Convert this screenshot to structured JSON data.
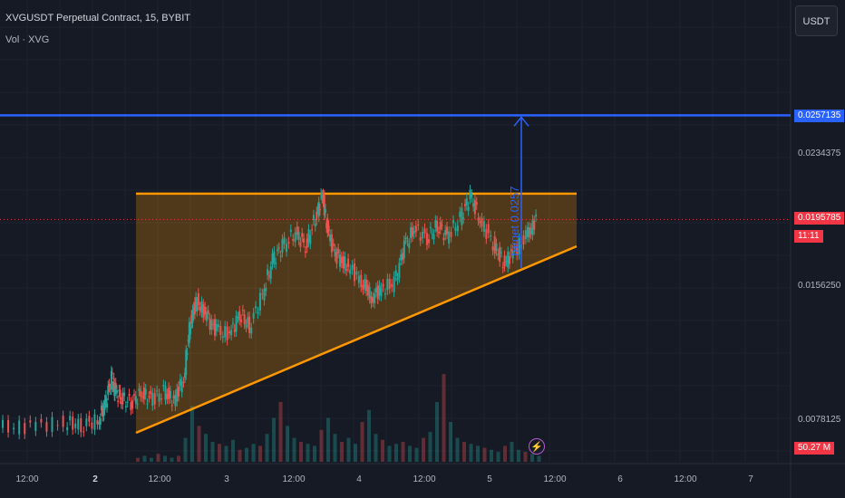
{
  "header": {
    "title": "XVGUSDT Perpetual Contract, 15, BYBIT",
    "indicator": "Vol · XVG"
  },
  "currency_button": {
    "label": "USDT"
  },
  "price_axis": {
    "labels": [
      "0.0234375",
      "0.0156250",
      "0.0078125"
    ],
    "target_badge": "0.0257135",
    "last_price_badge": "0.0195785",
    "countdown": "11:11",
    "volume_badge": "50.27 M"
  },
  "time_axis": {
    "labels": [
      {
        "text": "12:00",
        "bold": false
      },
      {
        "text": "2",
        "bold": true
      },
      {
        "text": "12:00",
        "bold": false
      },
      {
        "text": "3",
        "bold": false
      },
      {
        "text": "12:00",
        "bold": false
      },
      {
        "text": "4",
        "bold": false
      },
      {
        "text": "12:00",
        "bold": false
      },
      {
        "text": "5",
        "bold": false
      },
      {
        "text": "12:00",
        "bold": false
      },
      {
        "text": "6",
        "bold": false
      },
      {
        "text": "12:00",
        "bold": false
      },
      {
        "text": "7",
        "bold": false
      }
    ]
  },
  "annotations": {
    "target_label": "Target 0.0257"
  },
  "colors": {
    "background": "#161a25",
    "up": "#26a69a",
    "down": "#ef5350",
    "pattern": "#ff9800",
    "target_line": "#2962ff"
  },
  "chart_data": {
    "type": "candlestick",
    "y_axis_ticks": [
      0.0234375,
      0.015625,
      0.0078125
    ],
    "target_price": 0.0257135,
    "last_price": 0.0195785,
    "resistance_level": 0.0211,
    "price_series": [
      [
        0,
        0.0073
      ],
      [
        1,
        0.0074
      ],
      [
        2,
        0.0076
      ],
      [
        2.5,
        0.0075
      ],
      [
        3,
        0.0077
      ],
      [
        3.2,
        0.0087
      ],
      [
        3.4,
        0.0102
      ],
      [
        3.5,
        0.0095
      ],
      [
        3.7,
        0.009
      ],
      [
        4,
        0.0088
      ],
      [
        4.3,
        0.0093
      ],
      [
        4.6,
        0.009
      ],
      [
        5,
        0.0094
      ],
      [
        5.3,
        0.0089
      ],
      [
        5.6,
        0.0103
      ],
      [
        5.8,
        0.0137
      ],
      [
        6,
        0.0148
      ],
      [
        6.3,
        0.0138
      ],
      [
        6.6,
        0.013
      ],
      [
        7,
        0.0128
      ],
      [
        7.3,
        0.014
      ],
      [
        7.6,
        0.0133
      ],
      [
        8,
        0.0152
      ],
      [
        8.3,
        0.0172
      ],
      [
        8.6,
        0.018
      ],
      [
        9,
        0.0188
      ],
      [
        9.3,
        0.018
      ],
      [
        9.6,
        0.0197
      ],
      [
        9.8,
        0.021
      ],
      [
        10,
        0.0185
      ],
      [
        10.3,
        0.0172
      ],
      [
        10.6,
        0.0168
      ],
      [
        11,
        0.016
      ],
      [
        11.3,
        0.015
      ],
      [
        11.6,
        0.0155
      ],
      [
        12,
        0.0158
      ],
      [
        12.3,
        0.018
      ],
      [
        12.6,
        0.019
      ],
      [
        13,
        0.0185
      ],
      [
        13.3,
        0.0192
      ],
      [
        13.6,
        0.0186
      ],
      [
        14,
        0.0196
      ],
      [
        14.3,
        0.021
      ],
      [
        14.6,
        0.0195
      ],
      [
        15,
        0.0182
      ],
      [
        15.3,
        0.017
      ],
      [
        15.6,
        0.0176
      ],
      [
        16,
        0.0185
      ],
      [
        16.3,
        0.0196
      ]
    ],
    "volume_series": [
      2,
      3,
      2,
      4,
      3,
      2,
      3,
      12,
      28,
      18,
      14,
      10,
      9,
      8,
      11,
      6,
      7,
      9,
      8,
      14,
      22,
      30,
      18,
      12,
      10,
      9,
      8,
      16,
      22,
      14,
      10,
      12,
      9,
      20,
      26,
      14,
      11,
      8,
      9,
      10,
      8,
      7,
      12,
      15,
      30,
      44,
      20,
      12,
      10,
      9,
      8,
      7,
      6,
      5,
      8,
      10,
      6,
      5,
      4,
      3
    ]
  }
}
